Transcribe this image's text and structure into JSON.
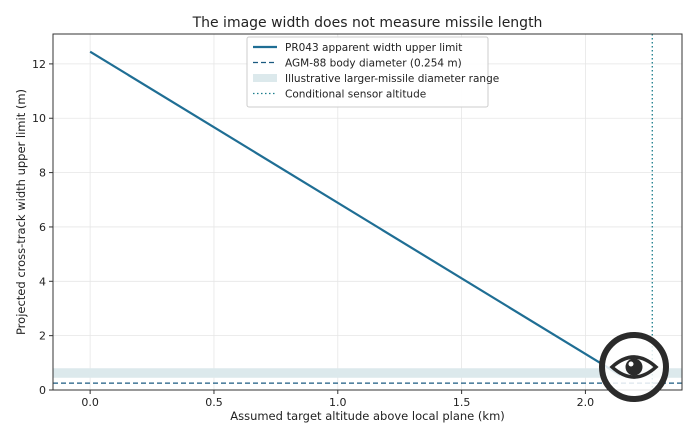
{
  "chart_data": {
    "type": "line",
    "title": "The image width does not measure missile length",
    "xlabel": "Assumed target altitude above local plane (km)",
    "ylabel": "Projected cross-track width upper limit (m)",
    "xlim": [
      -0.15,
      2.39
    ],
    "ylim": [
      0,
      13.1
    ],
    "xticks": [
      0.0,
      0.5,
      1.0,
      1.5,
      2.0
    ],
    "xtick_labels": [
      "0.0",
      "0.5",
      "1.0",
      "1.5",
      "2.0"
    ],
    "yticks": [
      0,
      2,
      4,
      6,
      8,
      10,
      12
    ],
    "ytick_labels": [
      "0",
      "2",
      "4",
      "6",
      "8",
      "10",
      "12"
    ],
    "grid": true,
    "legend_position": "top-center",
    "series": [
      {
        "name": "PR043 apparent width upper limit",
        "style": "solid",
        "color": "#1f6e94",
        "x": [
          0.0,
          2.14
        ],
        "y": [
          12.45,
          0.55
        ]
      },
      {
        "name": "AGM-88 body diameter (0.254 m)",
        "style": "dashed-horizontal",
        "color": "#1a5a80",
        "y_value": 0.254
      },
      {
        "name": "Illustrative larger-missile diameter range",
        "style": "band",
        "color": "#dce9ec",
        "y_range": [
          0.45,
          0.8
        ]
      },
      {
        "name": "Conditional sensor altitude",
        "style": "dotted-vertical",
        "color": "#1b7d8c",
        "x_value": 2.27
      }
    ]
  },
  "watermark": {
    "icon": "eye-icon",
    "color": "#2b2b2b"
  }
}
